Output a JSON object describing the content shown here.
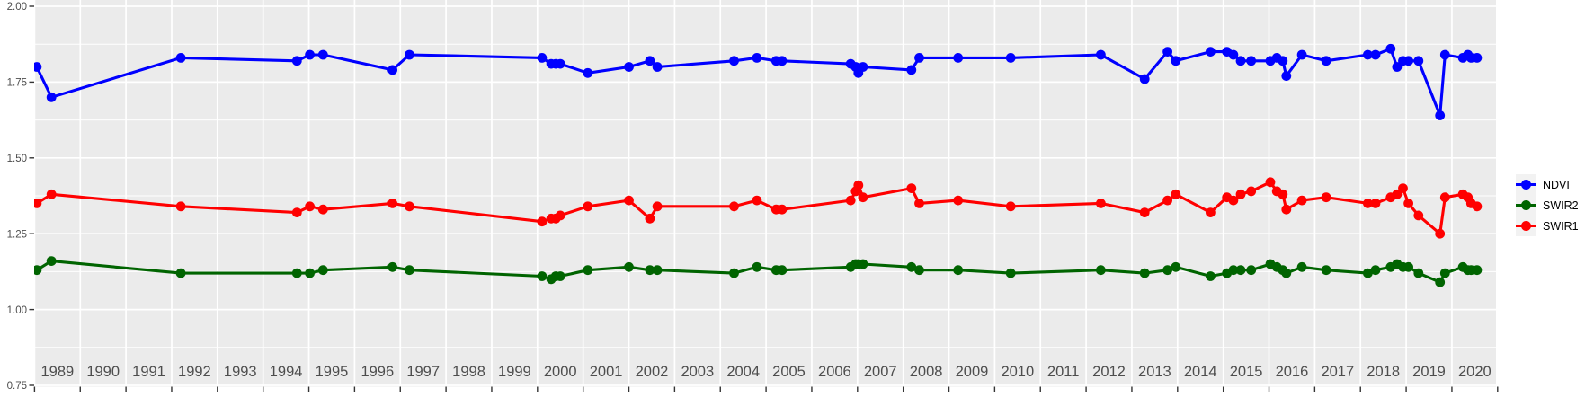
{
  "chart_data": {
    "type": "line",
    "title": "",
    "xlabel": "",
    "ylabel": "",
    "grid": true,
    "legend_position": "right",
    "style": {
      "panel_bg": "#ebebeb",
      "grid_color": "#ffffff",
      "axis_text_color": "#4d4d4d",
      "tick_color": "#333333",
      "ndvi_color": "#0000ff",
      "swir2_color": "#006400",
      "swir1_color": "#ff0000"
    },
    "x_axis": {
      "domain": [
        1989,
        2021
      ],
      "tick_years": [
        1989,
        1990,
        1991,
        1992,
        1993,
        1994,
        1995,
        1996,
        1997,
        1998,
        1999,
        2000,
        2001,
        2002,
        2003,
        2004,
        2005,
        2006,
        2007,
        2008,
        2009,
        2010,
        2011,
        2012,
        2013,
        2014,
        2015,
        2016,
        2017,
        2018,
        2019,
        2020
      ]
    },
    "y_axis": {
      "domain": [
        0.75,
        2.0
      ],
      "major_ticks": [
        {
          "value": 2.0,
          "label": "2.00"
        },
        {
          "value": 1.75,
          "label": "1.75"
        },
        {
          "value": 1.5,
          "label": "1.50"
        },
        {
          "value": 1.25,
          "label": "1.25"
        },
        {
          "value": 1.0,
          "label": "1.00"
        },
        {
          "value": 0.75,
          "label": "0.75"
        }
      ],
      "minor_ticks": [
        1.875,
        1.625,
        1.375,
        1.125,
        0.875
      ]
    },
    "x": [
      1989.05,
      1989.37,
      1992.2,
      1994.74,
      1995.02,
      1995.31,
      1996.83,
      1997.2,
      2000.1,
      2000.3,
      2000.4,
      2000.5,
      2001.1,
      2002.0,
      2002.46,
      2002.62,
      2004.3,
      2004.8,
      2005.22,
      2005.35,
      2006.85,
      2006.96,
      2007.02,
      2007.12,
      2008.18,
      2008.35,
      2009.2,
      2010.35,
      2012.32,
      2013.28,
      2013.78,
      2013.96,
      2014.72,
      2015.08,
      2015.22,
      2015.38,
      2015.61,
      2016.03,
      2016.17,
      2016.3,
      2016.38,
      2016.72,
      2017.25,
      2018.16,
      2018.33,
      2018.66,
      2018.8,
      2018.93,
      2019.05,
      2019.27,
      2019.74,
      2019.85,
      2020.24,
      2020.35,
      2020.42,
      2020.55
    ],
    "series": [
      {
        "name": "NDVI",
        "color": "#0000ff",
        "values": [
          1.8,
          1.7,
          1.83,
          1.82,
          1.84,
          1.84,
          1.79,
          1.84,
          1.83,
          1.81,
          1.81,
          1.81,
          1.78,
          1.8,
          1.82,
          1.8,
          1.82,
          1.83,
          1.82,
          1.82,
          1.81,
          1.8,
          1.78,
          1.8,
          1.79,
          1.83,
          1.83,
          1.83,
          1.84,
          1.76,
          1.85,
          1.82,
          1.85,
          1.85,
          1.84,
          1.82,
          1.82,
          1.82,
          1.83,
          1.82,
          1.77,
          1.84,
          1.82,
          1.84,
          1.84,
          1.86,
          1.8,
          1.82,
          1.82,
          1.82,
          1.64,
          1.84,
          1.83,
          1.84,
          1.83,
          1.83
        ]
      },
      {
        "name": "SWIR2",
        "color": "#006400",
        "values": [
          1.13,
          1.16,
          1.12,
          1.12,
          1.12,
          1.13,
          1.14,
          1.13,
          1.11,
          1.1,
          1.11,
          1.11,
          1.13,
          1.14,
          1.13,
          1.13,
          1.12,
          1.14,
          1.13,
          1.13,
          1.14,
          1.15,
          1.15,
          1.15,
          1.14,
          1.13,
          1.13,
          1.12,
          1.13,
          1.12,
          1.13,
          1.14,
          1.11,
          1.12,
          1.13,
          1.13,
          1.13,
          1.15,
          1.14,
          1.13,
          1.12,
          1.14,
          1.13,
          1.12,
          1.13,
          1.14,
          1.15,
          1.14,
          1.14,
          1.12,
          1.09,
          1.12,
          1.14,
          1.13,
          1.13,
          1.13
        ]
      },
      {
        "name": "SWIR1",
        "color": "#ff0000",
        "values": [
          1.35,
          1.38,
          1.34,
          1.32,
          1.34,
          1.33,
          1.35,
          1.34,
          1.29,
          1.3,
          1.3,
          1.31,
          1.34,
          1.36,
          1.3,
          1.34,
          1.34,
          1.36,
          1.33,
          1.33,
          1.36,
          1.39,
          1.41,
          1.37,
          1.4,
          1.35,
          1.36,
          1.34,
          1.35,
          1.32,
          1.36,
          1.38,
          1.32,
          1.37,
          1.36,
          1.38,
          1.39,
          1.42,
          1.39,
          1.38,
          1.33,
          1.36,
          1.37,
          1.35,
          1.35,
          1.37,
          1.38,
          1.4,
          1.35,
          1.31,
          1.25,
          1.37,
          1.38,
          1.37,
          1.35,
          1.34
        ]
      }
    ]
  }
}
